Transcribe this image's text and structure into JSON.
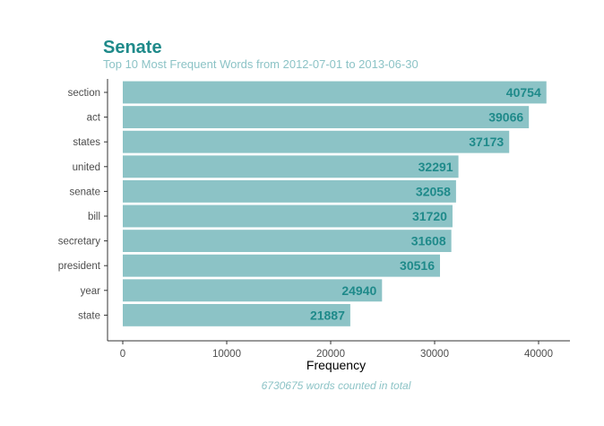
{
  "chart_data": {
    "type": "bar",
    "orientation": "horizontal",
    "title": "Senate",
    "subtitle": "Top 10 Most Frequent Words from 2012-07-01 to 2013-06-30",
    "xlabel": "Frequency",
    "ylabel": "",
    "caption": "6730675 words counted in total",
    "categories": [
      "section",
      "act",
      "states",
      "united",
      "senate",
      "bill",
      "secretary",
      "president",
      "year",
      "state"
    ],
    "values": [
      40754,
      39066,
      37173,
      32291,
      32058,
      31720,
      31608,
      30516,
      24940,
      21887
    ],
    "xticks": [
      0,
      10000,
      20000,
      30000,
      40000
    ],
    "xlim": [
      0,
      42500
    ],
    "grid": false,
    "legend": "none",
    "colors": {
      "bar": "#8cc3c6",
      "title": "#1f8a8a",
      "subtitle": "#8cc3c6",
      "bar_label": "#1f8a8a",
      "axis": "#333333"
    }
  }
}
